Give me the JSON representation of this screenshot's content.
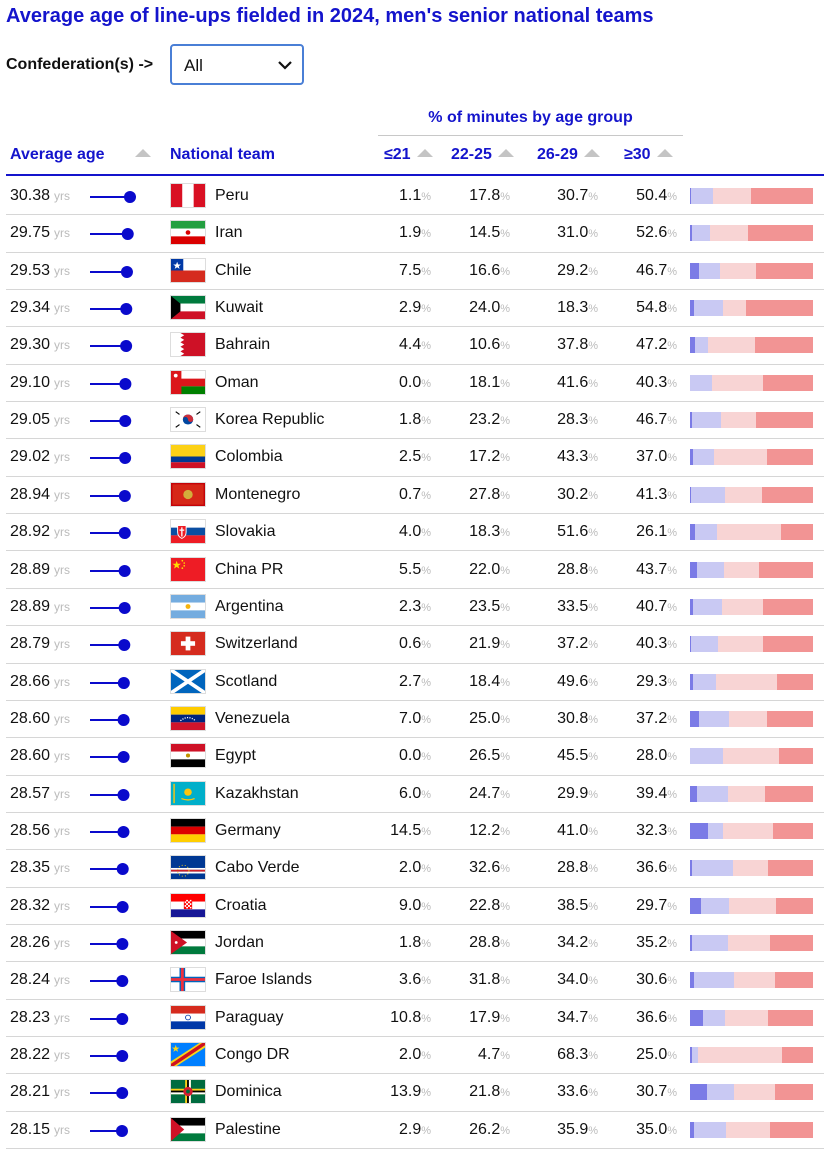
{
  "title": "Average age of line-ups fielded in 2024, men's senior national teams",
  "filter": {
    "label": "Confederation(s) ->",
    "value": "All"
  },
  "columns": {
    "average_age": "Average age",
    "team": "National team",
    "group_title": "% of minutes by age group",
    "g1": "≤21",
    "g2": "22-25",
    "g3": "26-29",
    "g4": "≥30"
  },
  "units": {
    "yrs": "yrs",
    "pct": "%"
  },
  "colors": {
    "title": "#1414cc",
    "dot": "#0a0acc",
    "g1": "#7b7be6",
    "g2": "#c9c9f3",
    "g3": "#f8d4d4",
    "g4": "#f29494"
  },
  "chart_data": {
    "type": "table",
    "rows": [
      {
        "avg": "30.38",
        "team": "Peru",
        "flag": "peru",
        "p": [
          "1.1",
          "17.8",
          "30.7",
          "50.4"
        ]
      },
      {
        "avg": "29.75",
        "team": "Iran",
        "flag": "iran",
        "p": [
          "1.9",
          "14.5",
          "31.0",
          "52.6"
        ]
      },
      {
        "avg": "29.53",
        "team": "Chile",
        "flag": "chile",
        "p": [
          "7.5",
          "16.6",
          "29.2",
          "46.7"
        ]
      },
      {
        "avg": "29.34",
        "team": "Kuwait",
        "flag": "kuwait",
        "p": [
          "2.9",
          "24.0",
          "18.3",
          "54.8"
        ]
      },
      {
        "avg": "29.30",
        "team": "Bahrain",
        "flag": "bahrain",
        "p": [
          "4.4",
          "10.6",
          "37.8",
          "47.2"
        ]
      },
      {
        "avg": "29.10",
        "team": "Oman",
        "flag": "oman",
        "p": [
          "0.0",
          "18.1",
          "41.6",
          "40.3"
        ]
      },
      {
        "avg": "29.05",
        "team": "Korea Republic",
        "flag": "korea",
        "p": [
          "1.8",
          "23.2",
          "28.3",
          "46.7"
        ]
      },
      {
        "avg": "29.02",
        "team": "Colombia",
        "flag": "colombia",
        "p": [
          "2.5",
          "17.2",
          "43.3",
          "37.0"
        ]
      },
      {
        "avg": "28.94",
        "team": "Montenegro",
        "flag": "montenegro",
        "p": [
          "0.7",
          "27.8",
          "30.2",
          "41.3"
        ]
      },
      {
        "avg": "28.92",
        "team": "Slovakia",
        "flag": "slovakia",
        "p": [
          "4.0",
          "18.3",
          "51.6",
          "26.1"
        ]
      },
      {
        "avg": "28.89",
        "team": "China PR",
        "flag": "china",
        "p": [
          "5.5",
          "22.0",
          "28.8",
          "43.7"
        ]
      },
      {
        "avg": "28.89",
        "team": "Argentina",
        "flag": "argentina",
        "p": [
          "2.3",
          "23.5",
          "33.5",
          "40.7"
        ]
      },
      {
        "avg": "28.79",
        "team": "Switzerland",
        "flag": "switzerland",
        "p": [
          "0.6",
          "21.9",
          "37.2",
          "40.3"
        ]
      },
      {
        "avg": "28.66",
        "team": "Scotland",
        "flag": "scotland",
        "p": [
          "2.7",
          "18.4",
          "49.6",
          "29.3"
        ]
      },
      {
        "avg": "28.60",
        "team": "Venezuela",
        "flag": "venezuela",
        "p": [
          "7.0",
          "25.0",
          "30.8",
          "37.2"
        ]
      },
      {
        "avg": "28.60",
        "team": "Egypt",
        "flag": "egypt",
        "p": [
          "0.0",
          "26.5",
          "45.5",
          "28.0"
        ]
      },
      {
        "avg": "28.57",
        "team": "Kazakhstan",
        "flag": "kazakhstan",
        "p": [
          "6.0",
          "24.7",
          "29.9",
          "39.4"
        ]
      },
      {
        "avg": "28.56",
        "team": "Germany",
        "flag": "germany",
        "p": [
          "14.5",
          "12.2",
          "41.0",
          "32.3"
        ]
      },
      {
        "avg": "28.35",
        "team": "Cabo Verde",
        "flag": "caboverde",
        "p": [
          "2.0",
          "32.6",
          "28.8",
          "36.6"
        ]
      },
      {
        "avg": "28.32",
        "team": "Croatia",
        "flag": "croatia",
        "p": [
          "9.0",
          "22.8",
          "38.5",
          "29.7"
        ]
      },
      {
        "avg": "28.26",
        "team": "Jordan",
        "flag": "jordan",
        "p": [
          "1.8",
          "28.8",
          "34.2",
          "35.2"
        ]
      },
      {
        "avg": "28.24",
        "team": "Faroe Islands",
        "flag": "faroe",
        "p": [
          "3.6",
          "31.8",
          "34.0",
          "30.6"
        ]
      },
      {
        "avg": "28.23",
        "team": "Paraguay",
        "flag": "paraguay",
        "p": [
          "10.8",
          "17.9",
          "34.7",
          "36.6"
        ]
      },
      {
        "avg": "28.22",
        "team": "Congo DR",
        "flag": "congodr",
        "p": [
          "2.0",
          "4.7",
          "68.3",
          "25.0"
        ]
      },
      {
        "avg": "28.21",
        "team": "Dominica",
        "flag": "dominica",
        "p": [
          "13.9",
          "21.8",
          "33.6",
          "30.7"
        ]
      },
      {
        "avg": "28.15",
        "team": "Palestine",
        "flag": "palestine",
        "p": [
          "2.9",
          "26.2",
          "35.9",
          "35.0"
        ]
      }
    ]
  }
}
